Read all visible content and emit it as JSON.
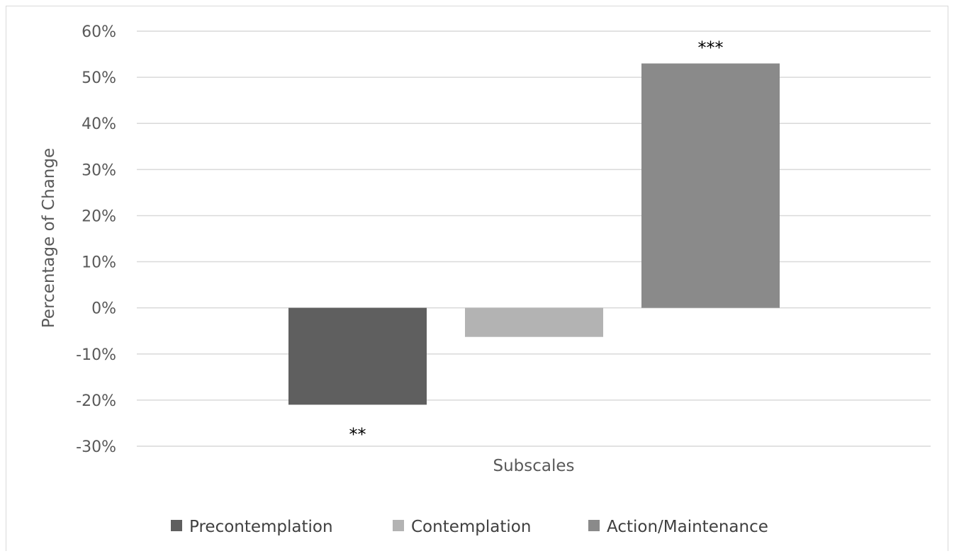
{
  "chart_data": {
    "type": "bar",
    "title": "",
    "xlabel": "Subscales",
    "ylabel": "Percentage of Change",
    "ylim": [
      -30,
      60
    ],
    "yticks": [
      60,
      50,
      40,
      30,
      20,
      10,
      0,
      -10,
      -20,
      -30
    ],
    "ytick_labels": [
      "60%",
      "50%",
      "40%",
      "30%",
      "20%",
      "10%",
      "0%",
      "-10%",
      "-20%",
      "-30%"
    ],
    "grid": true,
    "legend_position": "bottom",
    "series": [
      {
        "name": "Precontemplation",
        "value": -21,
        "color": "#5f5f5f",
        "annotation": "**"
      },
      {
        "name": "Contemplation",
        "value": -6.3,
        "color": "#b3b3b3",
        "annotation": ""
      },
      {
        "name": "Action/Maintenance",
        "value": 53,
        "color": "#8a8a8a",
        "annotation": "***"
      }
    ]
  }
}
